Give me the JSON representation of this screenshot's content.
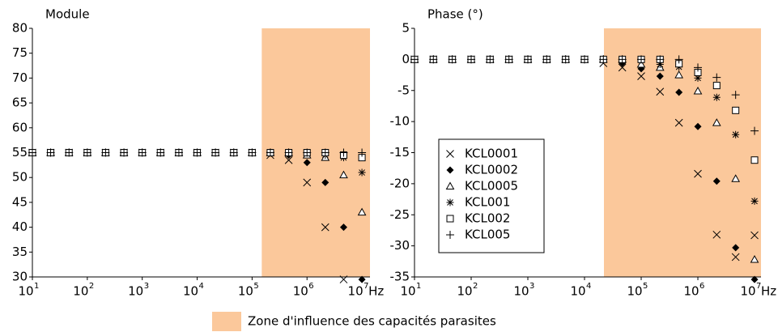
{
  "chart_data": [
    {
      "type": "scatter",
      "title": "Module",
      "x_label": "Hz",
      "xscale": "log",
      "xlim": [
        10,
        14000000
      ],
      "ylim": [
        30,
        80
      ],
      "xticks": [
        {
          "value": 10,
          "label": "10",
          "sup": "1"
        },
        {
          "value": 100,
          "label": "10",
          "sup": "2"
        },
        {
          "value": 1000,
          "label": "10",
          "sup": "3"
        },
        {
          "value": 10000,
          "label": "10",
          "sup": "4"
        },
        {
          "value": 100000,
          "label": "10",
          "sup": "5"
        },
        {
          "value": 1000000,
          "label": "10",
          "sup": "6"
        },
        {
          "value": 10000000,
          "label": "10",
          "sup": "7"
        }
      ],
      "yticks": [
        30,
        35,
        40,
        45,
        50,
        55,
        60,
        65,
        70,
        75,
        80
      ],
      "shade": {
        "x0": 150000,
        "x1": 14000000,
        "color": "#fbc89b"
      },
      "x": [
        10,
        21.5,
        46.4,
        100,
        215,
        464,
        1000,
        2150,
        4640,
        10000,
        21500,
        46400,
        100000,
        215000,
        464000,
        1000000,
        2150000,
        4640000,
        10000000
      ],
      "series": [
        {
          "name": "KCL0001",
          "marker": "x",
          "color": "#000000",
          "values": [
            55,
            55,
            55,
            55,
            55,
            55,
            55,
            55,
            55,
            55,
            55,
            55,
            55,
            54.5,
            53.5,
            49,
            40,
            29.5,
            null
          ]
        },
        {
          "name": "KCL0002",
          "marker": "diamond",
          "color": "#000000",
          "values": [
            55,
            55,
            55,
            55,
            55,
            55,
            55,
            55,
            55,
            55,
            55,
            55,
            55,
            55,
            54.5,
            53,
            49,
            40,
            29.5
          ]
        },
        {
          "name": "KCL0005",
          "marker": "triangle",
          "color": "#000000",
          "values": [
            55,
            55,
            55,
            55,
            55,
            55,
            55,
            55,
            55,
            55,
            55,
            55,
            55,
            55,
            55,
            54.5,
            54,
            50.5,
            43
          ]
        },
        {
          "name": "KCL001",
          "marker": "star",
          "color": "#000000",
          "values": [
            55,
            55,
            55,
            55,
            55,
            55,
            55,
            55,
            55,
            55,
            55,
            55,
            55,
            55,
            55,
            55,
            54.5,
            54,
            51
          ]
        },
        {
          "name": "KCL002",
          "marker": "square",
          "color": "#000000",
          "values": [
            55,
            55,
            55,
            55,
            55,
            55,
            55,
            55,
            55,
            55,
            55,
            55,
            55,
            55,
            55,
            55,
            55,
            54.5,
            54
          ]
        },
        {
          "name": "KCL005",
          "marker": "plus",
          "color": "#000000",
          "values": [
            55,
            55,
            55,
            55,
            55,
            55,
            55,
            55,
            55,
            55,
            55,
            55,
            55,
            55,
            55,
            55,
            55,
            55,
            55
          ]
        }
      ]
    },
    {
      "type": "scatter",
      "title": "Phase (°)",
      "x_label": "Hz",
      "xscale": "log",
      "legend": "lower-left",
      "xlim": [
        10,
        13000000
      ],
      "ylim": [
        -35,
        5
      ],
      "xticks": [
        {
          "value": 10,
          "label": "10",
          "sup": "1"
        },
        {
          "value": 100,
          "label": "10",
          "sup": "2"
        },
        {
          "value": 1000,
          "label": "10",
          "sup": "3"
        },
        {
          "value": 10000,
          "label": "10",
          "sup": "4"
        },
        {
          "value": 100000,
          "label": "10",
          "sup": "5"
        },
        {
          "value": 1000000,
          "label": "10",
          "sup": "6"
        },
        {
          "value": 10000000,
          "label": "10",
          "sup": "7"
        }
      ],
      "yticks": [
        -35,
        -30,
        -25,
        -20,
        -15,
        -10,
        -5,
        0,
        5
      ],
      "shade": {
        "x0": 22000,
        "x1": 13000000,
        "color": "#fbc89b"
      },
      "x": [
        10,
        21.5,
        46.4,
        100,
        215,
        464,
        1000,
        2150,
        4640,
        10000,
        21500,
        46400,
        100000,
        215000,
        464000,
        1000000,
        2150000,
        4640000,
        10000000
      ],
      "series": [
        {
          "name": "KCL0001",
          "marker": "x",
          "color": "#000000",
          "values": [
            0,
            0,
            0,
            0,
            0,
            0,
            0,
            0,
            0,
            0,
            -0.6,
            -1.3,
            -2.7,
            -5.2,
            -10.2,
            -18.4,
            -28.2,
            -31.8,
            -28.3
          ]
        },
        {
          "name": "KCL0002",
          "marker": "diamond",
          "color": "#000000",
          "values": [
            0,
            0,
            0,
            0,
            0,
            0,
            0,
            0,
            0,
            0,
            0,
            -0.6,
            -1.5,
            -2.7,
            -5.3,
            -10.8,
            -19.6,
            -30.3,
            -35.4
          ]
        },
        {
          "name": "KCL0005",
          "marker": "triangle",
          "color": "#000000",
          "values": [
            0,
            0,
            0,
            0,
            0,
            0,
            0,
            0,
            0,
            0,
            0,
            0,
            -0.8,
            -1.3,
            -2.5,
            -5.1,
            -10.2,
            -19.2,
            -32.2
          ]
        },
        {
          "name": "KCL001",
          "marker": "star",
          "color": "#000000",
          "values": [
            0,
            0,
            0,
            0,
            0,
            0,
            0,
            0,
            0,
            0,
            0,
            0,
            0,
            -0.8,
            -1.2,
            -3,
            -6.1,
            -12.1,
            -22.8
          ]
        },
        {
          "name": "KCL002",
          "marker": "square",
          "color": "#000000",
          "values": [
            0,
            0,
            0,
            0,
            0,
            0,
            0,
            0,
            0,
            0,
            0,
            0,
            0,
            0,
            -0.7,
            -2.1,
            -4.2,
            -8.2,
            -16.2
          ]
        },
        {
          "name": "KCL005",
          "marker": "plus",
          "color": "#000000",
          "values": [
            0,
            0,
            0,
            0,
            0,
            0,
            0,
            0,
            0,
            0,
            0,
            0,
            0,
            0,
            0,
            -1.3,
            -2.9,
            -5.7,
            -11.5
          ]
        }
      ]
    }
  ],
  "zone_legend": {
    "label": "Zone d'influence des capacités parasites",
    "color": "#fbc89b"
  }
}
